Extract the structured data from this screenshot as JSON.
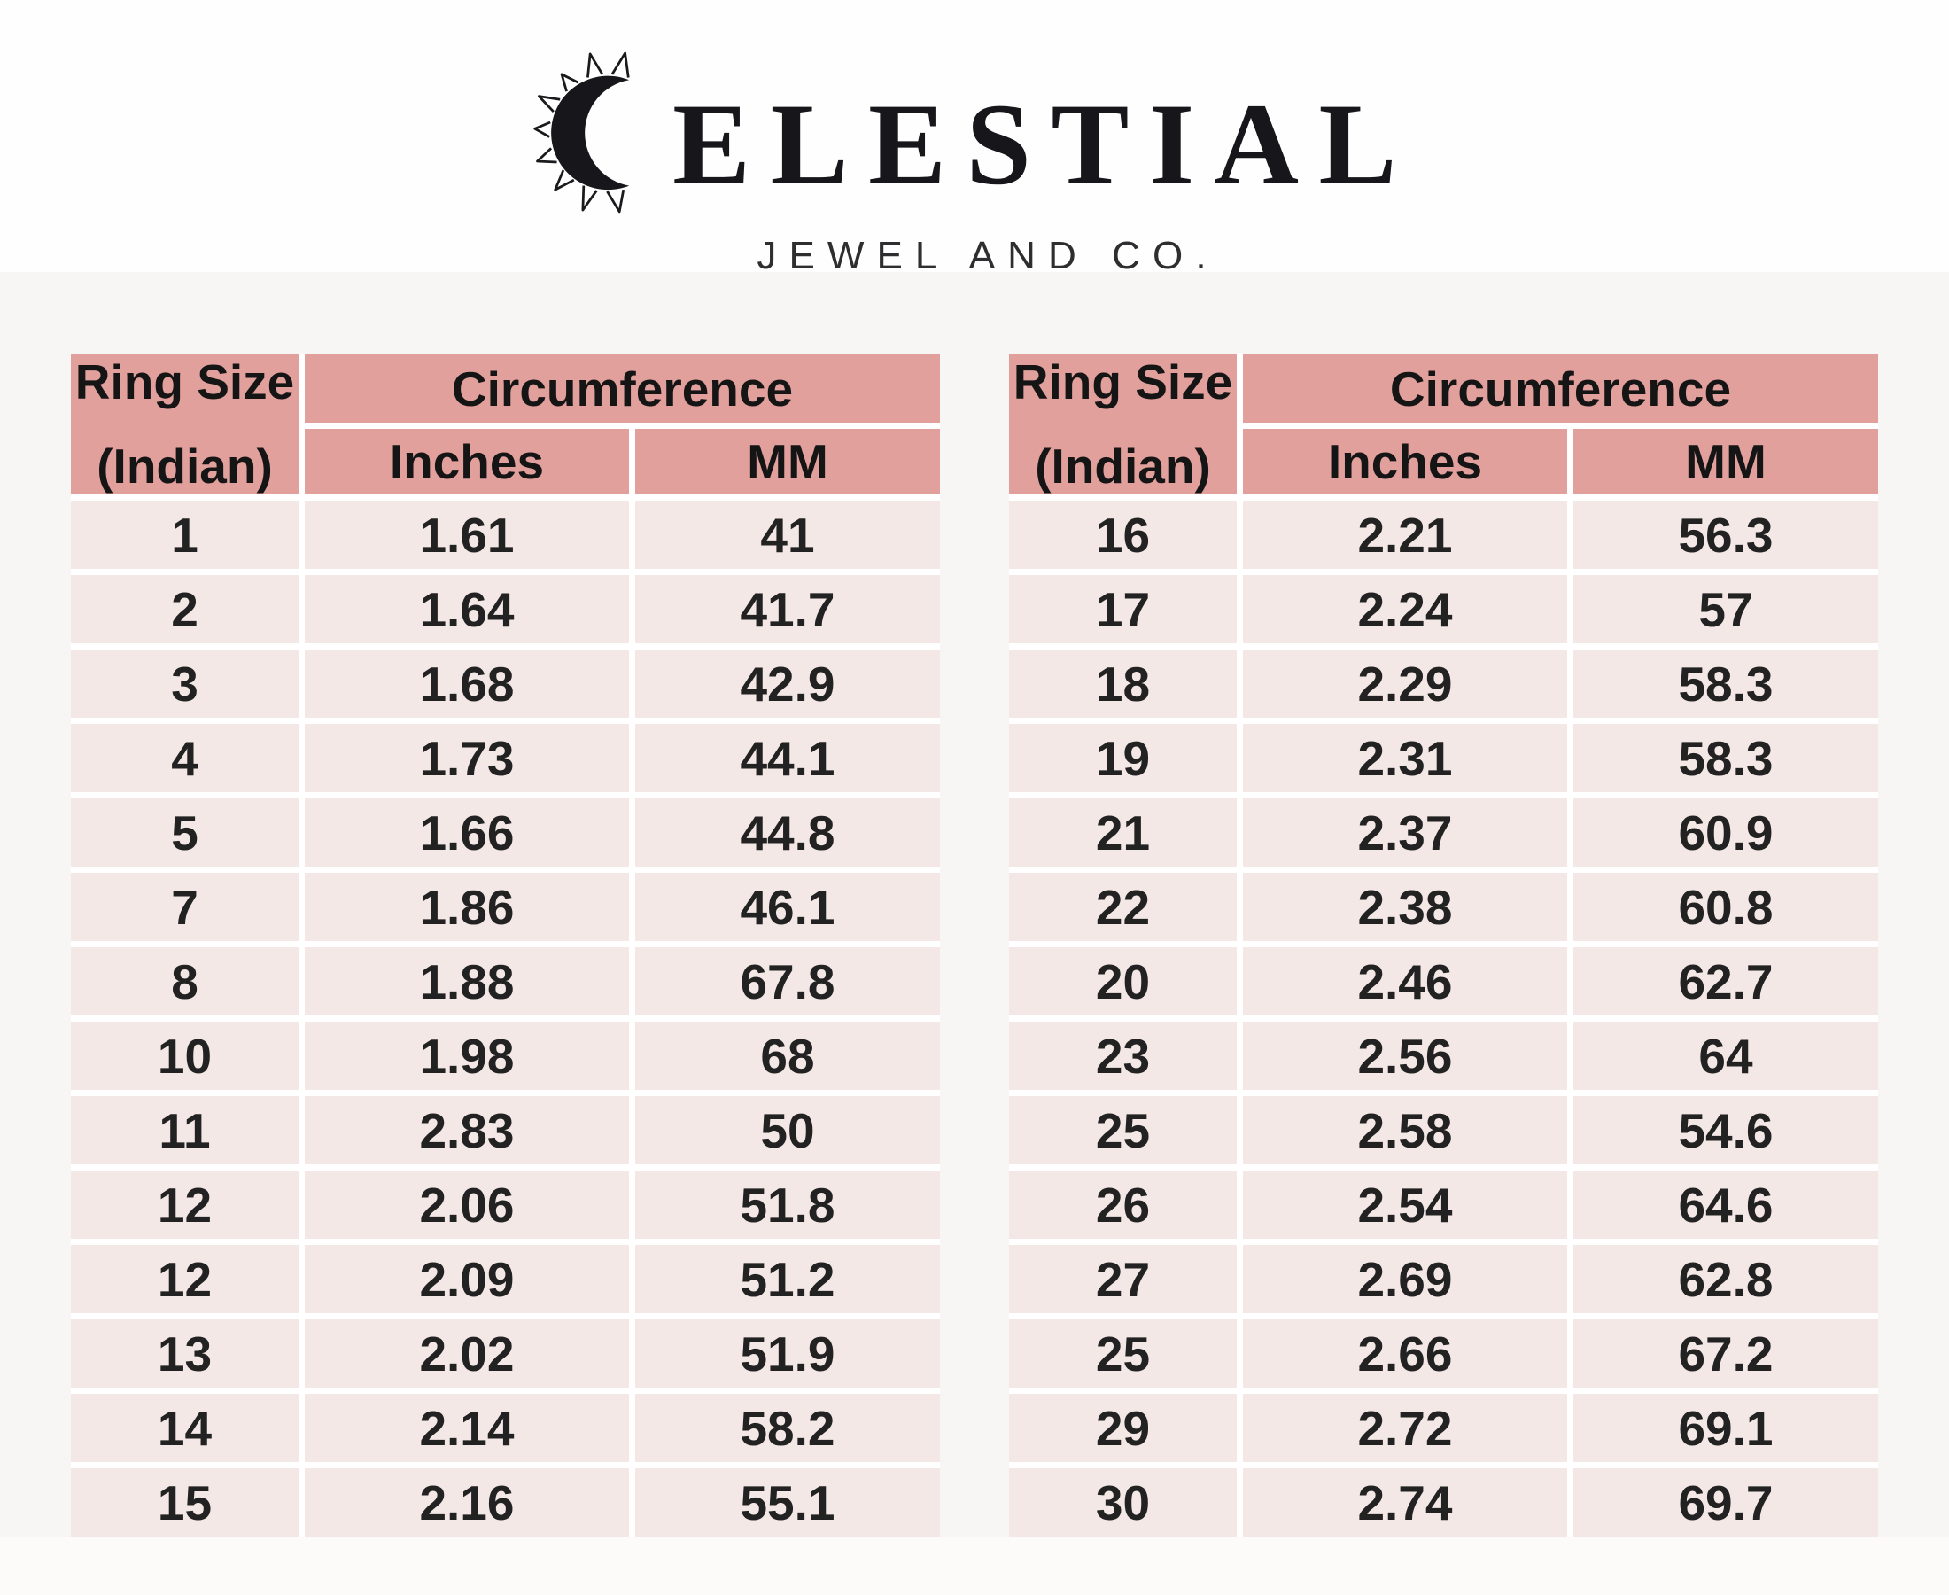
{
  "brand": {
    "name_full": "CELESTIAL",
    "name_after_icon": "ELESTIAL",
    "subtitle": "JEWEL AND CO.",
    "icon": "crescent-moon-with-sun-rays"
  },
  "colors": {
    "header_pink": "#e2a09d",
    "row_pink": "#f3e8e6",
    "section_background": "#f8f6f4",
    "text": "#1f1e1e"
  },
  "chart_data": [
    {
      "type": "table",
      "title": "Ring size conversion chart (left table)",
      "header": {
        "col1_line1": "Ring Size",
        "col1_line2": "(Indian)",
        "group": "Circumference",
        "sub1": "Inches",
        "sub2": "MM"
      },
      "rows": [
        [
          "1",
          "1.61",
          "41"
        ],
        [
          "2",
          "1.64",
          "41.7"
        ],
        [
          "3",
          "1.68",
          "42.9"
        ],
        [
          "4",
          "1.73",
          "44.1"
        ],
        [
          "5",
          "1.66",
          "44.8"
        ],
        [
          "7",
          "1.86",
          "46.1"
        ],
        [
          "8",
          "1.88",
          "67.8"
        ],
        [
          "10",
          "1.98",
          "68"
        ],
        [
          "11",
          "2.83",
          "50"
        ],
        [
          "12",
          "2.06",
          "51.8"
        ],
        [
          "12",
          "2.09",
          "51.2"
        ],
        [
          "13",
          "2.02",
          "51.9"
        ],
        [
          "14",
          "2.14",
          "58.2"
        ],
        [
          "15",
          "2.16",
          "55.1"
        ]
      ]
    },
    {
      "type": "table",
      "title": "Ring size conversion chart (right table)",
      "header": {
        "col1_line1": "Ring Size",
        "col1_line2": "(Indian)",
        "group": "Circumference",
        "sub1": "Inches",
        "sub2": "MM"
      },
      "rows": [
        [
          "16",
          "2.21",
          "56.3"
        ],
        [
          "17",
          "2.24",
          "57"
        ],
        [
          "18",
          "2.29",
          "58.3"
        ],
        [
          "19",
          "2.31",
          "58.3"
        ],
        [
          "21",
          "2.37",
          "60.9"
        ],
        [
          "22",
          "2.38",
          "60.8"
        ],
        [
          "20",
          "2.46",
          "62.7"
        ],
        [
          "23",
          "2.56",
          "64"
        ],
        [
          "25",
          "2.58",
          "54.6"
        ],
        [
          "26",
          "2.54",
          "64.6"
        ],
        [
          "27",
          "2.69",
          "62.8"
        ],
        [
          "25",
          "2.66",
          "67.2"
        ],
        [
          "29",
          "2.72",
          "69.1"
        ],
        [
          "30",
          "2.74",
          "69.7"
        ]
      ]
    }
  ]
}
